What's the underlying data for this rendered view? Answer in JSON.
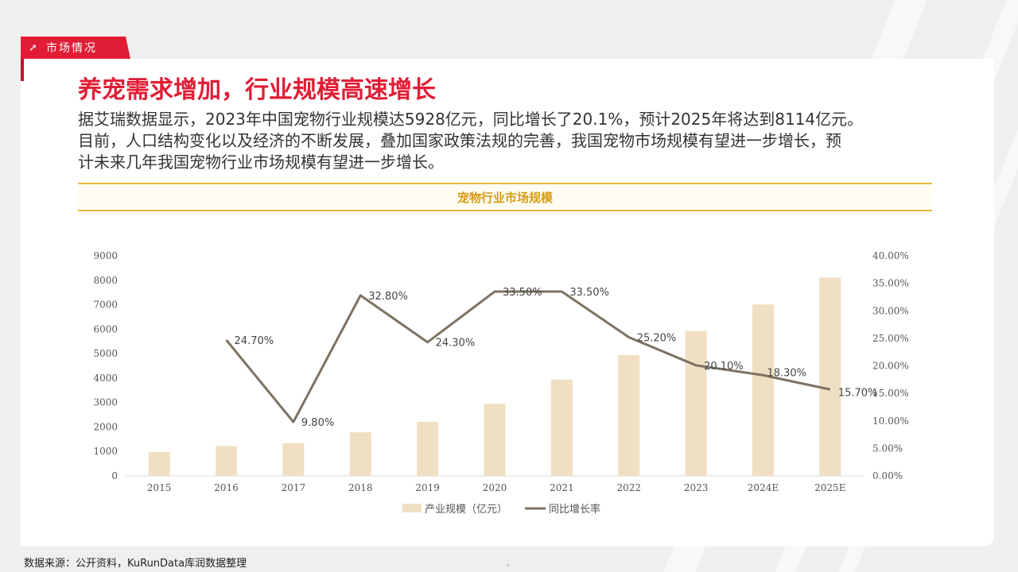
{
  "section_tab": {
    "icon": "arrow-up-right-icon",
    "label": "市场情况"
  },
  "title": "养宠需求增加，行业规模高速增长",
  "description": "据艾瑞数据显示，2023年中国宠物行业规模达5928亿元，同比增长了20.1%，预计2025年将达到8114亿元。\n目前，人口结构变化以及经济的不断发展，叠加国家政策法规的完善，我国宠物市场规模有望进一步增长，预\n计未来几年我国宠物行业市场规模有望进一步增长。",
  "chart_banner": "宠物行业市场规模",
  "source": "数据来源：公开资料，KuRunData库润数据整理",
  "colors": {
    "accent": "#e11d36",
    "gold": "#e2b93c",
    "bar": "#f0dfc2",
    "line": "#7d7262"
  },
  "chart_data": {
    "type": "bar",
    "categories": [
      "2015",
      "2016",
      "2017",
      "2018",
      "2019",
      "2020",
      "2021",
      "2022",
      "2023",
      "2024E",
      "2025E"
    ],
    "series": [
      {
        "name": "产业规模（亿元）",
        "type": "bar",
        "axis": "left",
        "values": [
          980,
          1220,
          1340,
          1780,
          2210,
          2950,
          3940,
          4940,
          5928,
          7010,
          8114
        ]
      },
      {
        "name": "同比增长率",
        "type": "line",
        "axis": "right",
        "values": [
          null,
          24.7,
          9.8,
          32.8,
          24.3,
          33.5,
          33.5,
          25.2,
          20.1,
          18.3,
          15.7
        ],
        "labels": [
          "",
          "24.70%",
          "9.80%",
          "32.80%",
          "24.30%",
          "33.50%",
          "33.50%",
          "25.20%",
          "20.10%",
          "18.30%",
          "15.70%"
        ]
      }
    ],
    "y_left": {
      "min": 0,
      "max": 9000,
      "step": 1000,
      "ticks": [
        "0",
        "1000",
        "2000",
        "3000",
        "4000",
        "5000",
        "6000",
        "7000",
        "8000",
        "9000"
      ]
    },
    "y_right": {
      "min": 0,
      "max": 40,
      "step": 5,
      "ticks": [
        "0.00%",
        "5.00%",
        "10.00%",
        "15.00%",
        "20.00%",
        "25.00%",
        "30.00%",
        "35.00%",
        "40.00%"
      ]
    },
    "legend_position": "bottom",
    "grid": false
  }
}
